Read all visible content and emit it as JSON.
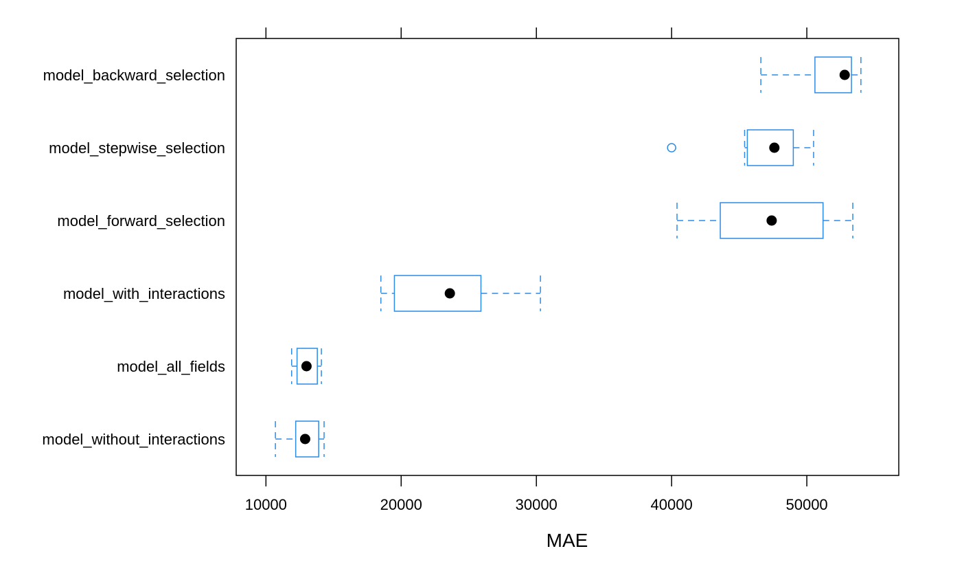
{
  "chart_data": {
    "type": "boxplot",
    "orientation": "horizontal",
    "xlabel": "MAE",
    "xlim": [
      7800,
      56800
    ],
    "xticks": [
      10000,
      20000,
      30000,
      40000,
      50000
    ],
    "xtick_labels": [
      "10000",
      "20000",
      "30000",
      "40000",
      "50000"
    ],
    "grid": false,
    "colors": {
      "box": "#2b8be8",
      "median_dot": "#000000",
      "frame": "#000000"
    },
    "categories": [
      "model_backward_selection",
      "model_stepwise_selection",
      "model_forward_selection",
      "model_with_interactions",
      "model_all_fields",
      "model_without_interactions"
    ],
    "boxes": [
      {
        "name": "model_backward_selection",
        "whisker_low": 46600,
        "q1": 50600,
        "median": 52800,
        "q3": 53300,
        "whisker_high": 54000,
        "outliers": []
      },
      {
        "name": "model_stepwise_selection",
        "whisker_low": 45400,
        "q1": 45600,
        "median": 47600,
        "q3": 49000,
        "whisker_high": 50500,
        "outliers": [
          40000
        ]
      },
      {
        "name": "model_forward_selection",
        "whisker_low": 40400,
        "q1": 43600,
        "median": 47400,
        "q3": 51200,
        "whisker_high": 53400,
        "outliers": []
      },
      {
        "name": "model_with_interactions",
        "whisker_low": 18500,
        "q1": 19500,
        "median": 23600,
        "q3": 25900,
        "whisker_high": 30300,
        "outliers": []
      },
      {
        "name": "model_all_fields",
        "whisker_low": 11900,
        "q1": 12300,
        "median": 13000,
        "q3": 13800,
        "whisker_high": 14100,
        "outliers": []
      },
      {
        "name": "model_without_interactions",
        "whisker_low": 10700,
        "q1": 12200,
        "median": 12900,
        "q3": 13900,
        "whisker_high": 14300,
        "outliers": []
      }
    ]
  }
}
